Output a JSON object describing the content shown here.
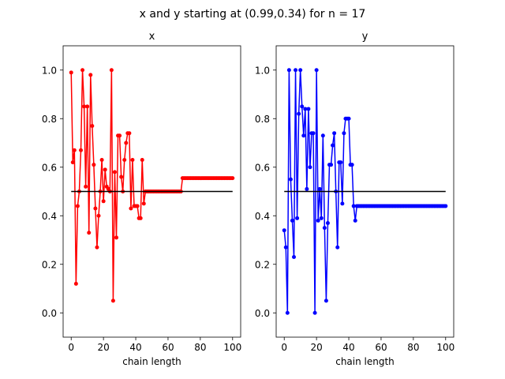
{
  "figure": {
    "suptitle": "x and y starting at (0.99,0.34) for n = 17"
  },
  "chart_data": [
    {
      "type": "line",
      "title": "x",
      "xlabel": "chain length",
      "ylabel": "",
      "xlim": [
        -5,
        105
      ],
      "ylim": [
        -0.1,
        1.1
      ],
      "xticks": [
        0,
        20,
        40,
        60,
        80,
        100
      ],
      "yticks": [
        0.0,
        0.2,
        0.4,
        0.6,
        0.8,
        1.0
      ],
      "grid": false,
      "series": [
        {
          "color": "#ff0000",
          "marker": "circle",
          "x": [
            0,
            1,
            2,
            3,
            4,
            5,
            6,
            7,
            8,
            9,
            10,
            11,
            12,
            13,
            14,
            15,
            16,
            17,
            18,
            19,
            20,
            21,
            22,
            23,
            24,
            25,
            26,
            27,
            28,
            29,
            30,
            31,
            32,
            33,
            34,
            35,
            36,
            37,
            38,
            39,
            40,
            41,
            42,
            43,
            44,
            45,
            46,
            47,
            48,
            49,
            50,
            51,
            52,
            53,
            54,
            55,
            56,
            57,
            58,
            59,
            60,
            61,
            62,
            63,
            64,
            65,
            66,
            67,
            68,
            69,
            70,
            71,
            72,
            73,
            74,
            75,
            76,
            77,
            78,
            79,
            80,
            81,
            82,
            83,
            84,
            85,
            86,
            87,
            88,
            89,
            90,
            91,
            92,
            93,
            94,
            95,
            96,
            97,
            98,
            99,
            100
          ],
          "values": [
            0.99,
            0.62,
            0.67,
            0.12,
            0.44,
            0.5,
            0.67,
            1.0,
            0.85,
            0.52,
            0.85,
            0.33,
            0.98,
            0.77,
            0.61,
            0.43,
            0.27,
            0.4,
            0.5,
            0.63,
            0.46,
            0.59,
            0.52,
            0.51,
            0.5,
            1.0,
            0.05,
            0.58,
            0.31,
            0.73,
            0.73,
            0.56,
            0.5,
            0.63,
            0.7,
            0.74,
            0.74,
            0.43,
            0.63,
            0.44,
            0.44,
            0.44,
            0.39,
            0.39,
            0.63,
            0.45,
            0.5,
            0.5,
            0.5,
            0.5,
            0.5,
            0.5,
            0.5,
            0.5,
            0.5,
            0.5,
            0.5,
            0.5,
            0.5,
            0.5,
            0.5,
            0.5,
            0.5,
            0.5,
            0.5,
            0.5,
            0.5,
            0.5,
            0.5,
            0.555,
            0.555,
            0.555,
            0.555,
            0.555,
            0.555,
            0.555,
            0.555,
            0.555,
            0.555,
            0.555,
            0.555,
            0.555,
            0.555,
            0.555,
            0.555,
            0.555,
            0.555,
            0.555,
            0.555,
            0.555,
            0.555,
            0.555,
            0.555,
            0.555,
            0.555,
            0.555,
            0.555,
            0.555,
            0.555,
            0.555,
            0.555
          ]
        },
        {
          "color": "#000000",
          "marker": "none",
          "x": [
            0,
            100
          ],
          "values": [
            0.5,
            0.5
          ]
        }
      ]
    },
    {
      "type": "line",
      "title": "y",
      "xlabel": "chain length",
      "ylabel": "",
      "xlim": [
        -5,
        105
      ],
      "ylim": [
        -0.1,
        1.1
      ],
      "xticks": [
        0,
        20,
        40,
        60,
        80,
        100
      ],
      "yticks": [
        0.0,
        0.2,
        0.4,
        0.6,
        0.8,
        1.0
      ],
      "grid": false,
      "series": [
        {
          "color": "#0000ff",
          "marker": "circle",
          "x": [
            0,
            1,
            2,
            3,
            4,
            5,
            6,
            7,
            8,
            9,
            10,
            11,
            12,
            13,
            14,
            15,
            16,
            17,
            18,
            19,
            20,
            21,
            22,
            23,
            24,
            25,
            26,
            27,
            28,
            29,
            30,
            31,
            32,
            33,
            34,
            35,
            36,
            37,
            38,
            39,
            40,
            41,
            42,
            43,
            44,
            45,
            46,
            47,
            48,
            49,
            50,
            51,
            52,
            53,
            54,
            55,
            56,
            57,
            58,
            59,
            60,
            61,
            62,
            63,
            64,
            65,
            66,
            67,
            68,
            69,
            70,
            71,
            72,
            73,
            74,
            75,
            76,
            77,
            78,
            79,
            80,
            81,
            82,
            83,
            84,
            85,
            86,
            87,
            88,
            89,
            90,
            91,
            92,
            93,
            94,
            95,
            96,
            97,
            98,
            99,
            100
          ],
          "values": [
            0.34,
            0.27,
            0.0,
            1.0,
            0.55,
            0.38,
            0.23,
            1.0,
            0.39,
            0.82,
            1.0,
            0.85,
            0.73,
            0.84,
            0.51,
            0.84,
            0.6,
            0.74,
            0.74,
            0.0,
            1.0,
            0.38,
            0.51,
            0.39,
            0.73,
            0.35,
            0.05,
            0.37,
            0.61,
            0.61,
            0.69,
            0.74,
            0.5,
            0.27,
            0.62,
            0.62,
            0.45,
            0.74,
            0.8,
            0.8,
            0.8,
            0.61,
            0.61,
            0.44,
            0.38,
            0.44,
            0.44,
            0.44,
            0.44,
            0.44,
            0.44,
            0.44,
            0.44,
            0.44,
            0.44,
            0.44,
            0.44,
            0.44,
            0.44,
            0.44,
            0.44,
            0.44,
            0.44,
            0.44,
            0.44,
            0.44,
            0.44,
            0.44,
            0.44,
            0.44,
            0.44,
            0.44,
            0.44,
            0.44,
            0.44,
            0.44,
            0.44,
            0.44,
            0.44,
            0.44,
            0.44,
            0.44,
            0.44,
            0.44,
            0.44,
            0.44,
            0.44,
            0.44,
            0.44,
            0.44,
            0.44,
            0.44,
            0.44,
            0.44,
            0.44,
            0.44,
            0.44,
            0.44,
            0.44,
            0.44,
            0.44
          ]
        },
        {
          "color": "#000000",
          "marker": "none",
          "x": [
            0,
            100
          ],
          "values": [
            0.5,
            0.5
          ]
        }
      ]
    }
  ]
}
